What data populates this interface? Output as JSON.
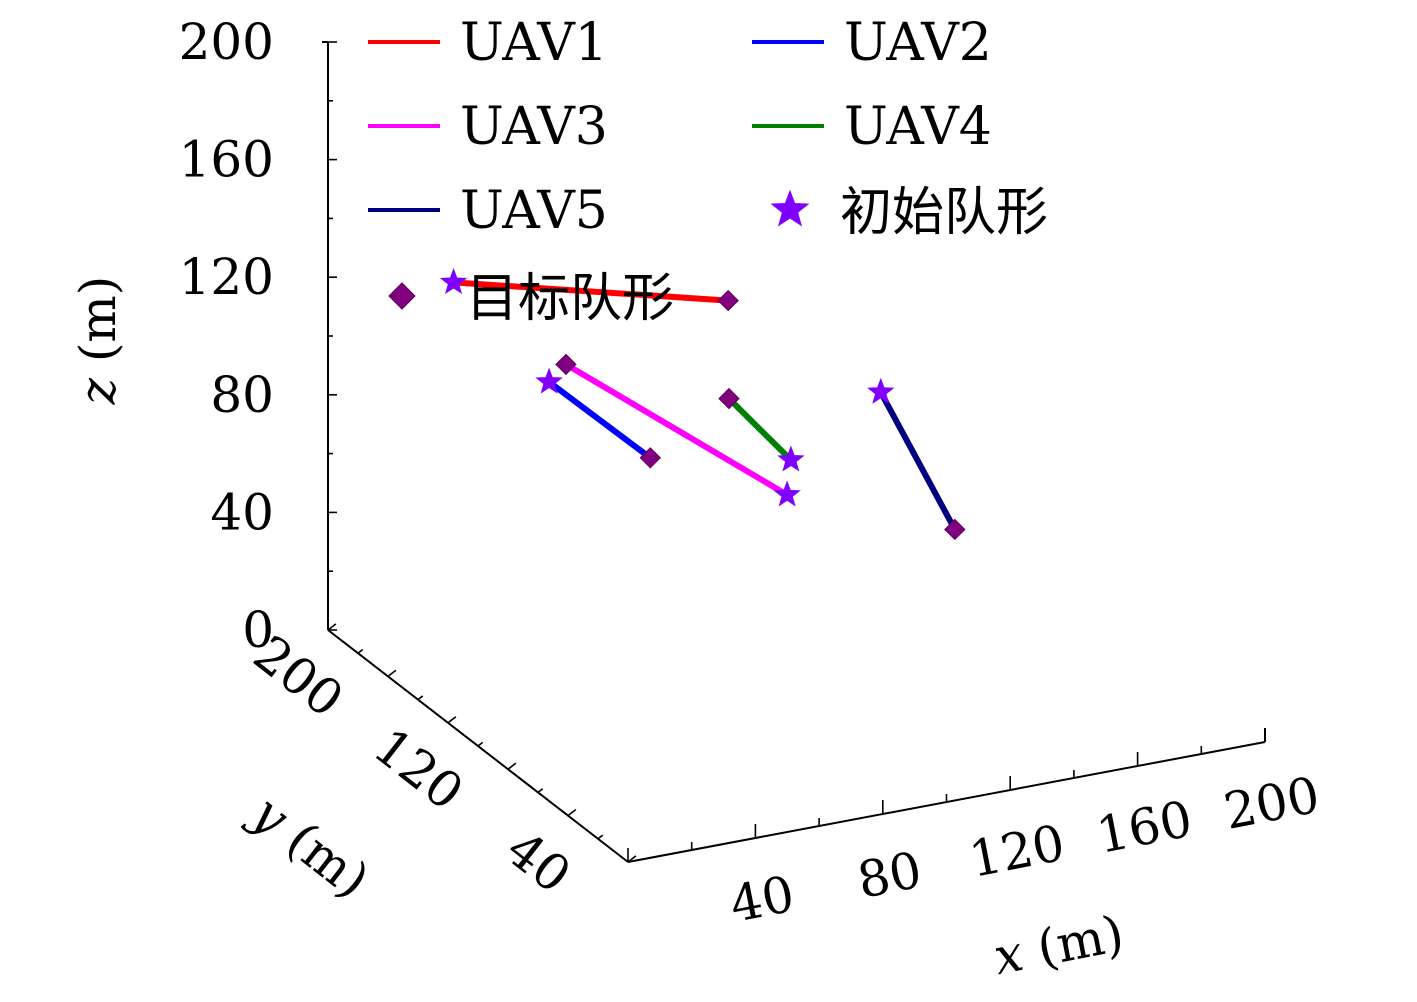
{
  "chart_data": {
    "type": "line3d",
    "xlabel_var": "x",
    "xlabel_unit": "(m)",
    "ylabel_var": "y",
    "ylabel_unit": "(m)",
    "zlabel_var": "z",
    "zlabel_unit": "(m)",
    "xlim": [
      0,
      200
    ],
    "ylim": [
      0,
      200
    ],
    "zlim": [
      0,
      200
    ],
    "x_ticks": [
      40,
      80,
      120,
      160,
      200
    ],
    "y_ticks": [
      40,
      120,
      200
    ],
    "z_ticks": [
      0,
      40,
      80,
      120,
      160,
      200
    ],
    "grid": false,
    "legend_position": "top",
    "series": [
      {
        "name": "UAV1",
        "color": "#ff0000",
        "start": {
          "x": 30,
          "y": 180,
          "z": 120
        },
        "end": {
          "x": 55,
          "y": 50,
          "z": 160
        }
      },
      {
        "name": "UAV2",
        "color": "#0000ff",
        "start": {
          "x": 60,
          "y": 180,
          "z": 80
        },
        "end": {
          "x": 80,
          "y": 155,
          "z": 60
        }
      },
      {
        "name": "UAV3",
        "color": "#ff00ff",
        "start": {
          "x": 90,
          "y": 85,
          "z": 73
        },
        "end": {
          "x": 70,
          "y": 190,
          "z": 80
        }
      },
      {
        "name": "UAV4",
        "color": "#008000",
        "start": {
          "x": 110,
          "y": 125,
          "z": 65
        },
        "end": {
          "x": 100,
          "y": 145,
          "z": 80
        }
      },
      {
        "name": "UAV5",
        "color": "#000080",
        "start": {
          "x": 150,
          "y": 150,
          "z": 70
        },
        "end": {
          "x": 145,
          "y": 90,
          "z": 48
        }
      }
    ],
    "legend": {
      "initial_label": "初始队形",
      "target_label": "目标队形",
      "initial_marker_color": "#8000ff",
      "target_marker_color": "#800080"
    }
  }
}
